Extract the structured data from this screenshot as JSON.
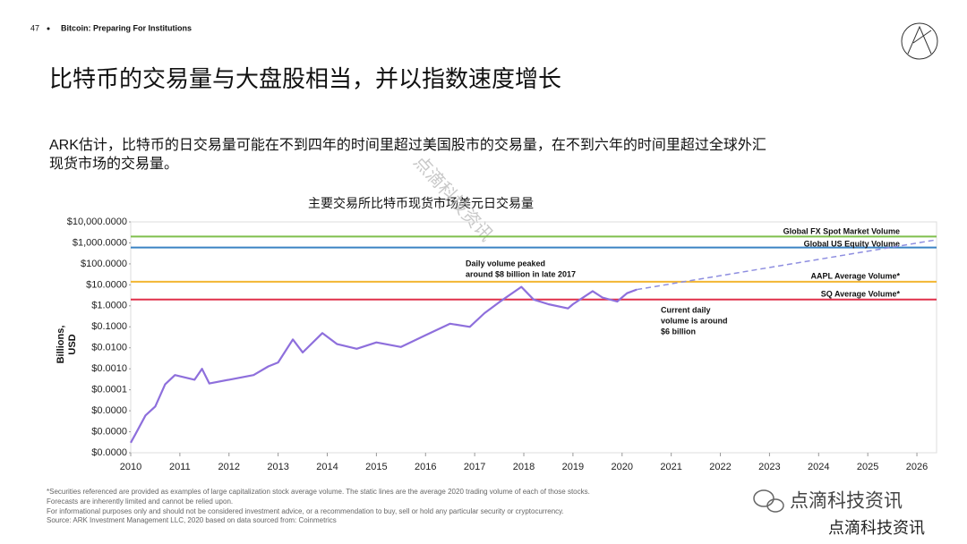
{
  "header": {
    "page_number": "47",
    "title": "Bitcoin: Preparing For Institutions"
  },
  "headline": "比特币的交易量与大盘股相当，并以指数速度增长",
  "description": [
    "ARK估计，比特币的日交易量可能在不到四年的时间里超过美国股市的交易量，在不到六年的时间里超过全球外汇",
    "现货市场的交易量。"
  ],
  "chart_data": {
    "type": "line",
    "title": "主要交易所比特币现货市场美元日交易量",
    "y_label": [
      "Billions,",
      "USD"
    ],
    "log_scale": true,
    "xlim": [
      2010,
      2026.4
    ],
    "xticks": [
      2010,
      2011,
      2012,
      2013,
      2014,
      2015,
      2016,
      2017,
      2018,
      2019,
      2020,
      2021,
      2022,
      2023,
      2024,
      2025,
      2026
    ],
    "ylim": [
      1e-07,
      10000
    ],
    "yticks": [
      {
        "value": 10000,
        "label": "$10,000.0000"
      },
      {
        "value": 1000,
        "label": "$1,000.0000"
      },
      {
        "value": 100,
        "label": "$100.0000"
      },
      {
        "value": 10,
        "label": "$10.0000"
      },
      {
        "value": 1,
        "label": "$1.0000"
      },
      {
        "value": 0.1,
        "label": "$0.1000"
      },
      {
        "value": 0.01,
        "label": "$0.0100"
      },
      {
        "value": 0.001,
        "label": "$0.0010"
      },
      {
        "value": 0.0001,
        "label": "$0.0001"
      },
      {
        "value": 1e-05,
        "label": "$0.0000"
      },
      {
        "value": 1e-06,
        "label": "$0.0000"
      },
      {
        "value": 1e-07,
        "label": "$0.0000"
      }
    ],
    "series": [
      {
        "color": "#8e6fdc",
        "style": "solid",
        "x": [
          2010.0,
          2010.1,
          2010.3,
          2010.5,
          2010.7,
          2010.9,
          2011.3,
          2011.45,
          2011.6,
          2012.0,
          2012.5,
          2012.8,
          2013.0,
          2013.3,
          2013.5,
          2013.9,
          2014.2,
          2014.6,
          2015.0,
          2015.5,
          2016.0,
          2016.5,
          2016.9,
          2017.2,
          2017.5,
          2017.95,
          2018.2,
          2018.5,
          2018.9,
          2019.0,
          2019.4,
          2019.6,
          2019.9,
          2020.1,
          2020.3
        ],
        "values": [
          3e-07,
          8e-07,
          6e-06,
          1.6e-05,
          0.00018,
          0.0005,
          0.0003,
          0.001,
          0.0002,
          0.0003,
          0.0005,
          0.0013,
          0.002,
          0.025,
          0.006,
          0.05,
          0.015,
          0.009,
          0.018,
          0.011,
          0.04,
          0.14,
          0.1,
          0.45,
          1.5,
          8,
          2,
          1.2,
          0.75,
          1.2,
          5,
          2.5,
          1.6,
          4,
          6
        ]
      },
      {
        "color": "#8e8ee0",
        "style": "dashed",
        "x": [
          2020.3,
          2026.4
        ],
        "values": [
          6,
          1400
        ]
      }
    ],
    "reference_lines": [
      {
        "name": "Global FX Spot Market Volume",
        "color": "#7fbf4d",
        "value": 2000
      },
      {
        "name": "Global US Equity Volume",
        "color": "#3b83c4",
        "value": 600
      },
      {
        "name": "AAPL Average Volume*",
        "color": "#f2b632",
        "value": 14
      },
      {
        "name": "SQ Average Volume*",
        "color": "#e0304a",
        "value": 2
      }
    ],
    "annotations": [
      {
        "lines": [
          "Daily volume peaked",
          "around $8 billion in late 2017"
        ]
      },
      {
        "lines": [
          "Current daily",
          "volume is around",
          "$6 billion"
        ]
      }
    ]
  },
  "footnotes": [
    "*Securities referenced are provided as examples of large capitalization stock average volume. The static lines are the average 2020 trading volume of each of those stocks.",
    "Forecasts are inherently limited and cannot be relied upon.",
    "For informational purposes only and should not be considered investment advice, or a recommendation to buy, sell or hold any particular security or cryptocurrency.",
    "Source: ARK Investment Management LLC, 2020 based on data sourced from: Coinmetrics"
  ],
  "watermark": [
    "点滴科技资讯",
    "点滴科技资讯",
    "点滴科技资讯"
  ]
}
